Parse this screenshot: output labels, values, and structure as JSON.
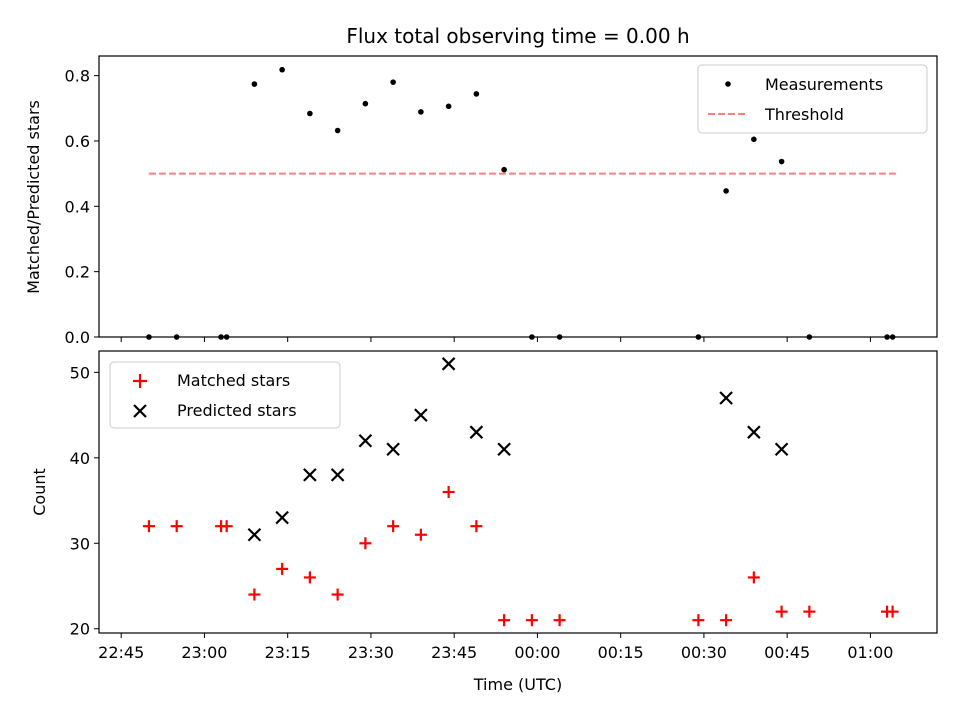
{
  "chart_data": [
    {
      "type": "scatter",
      "title": "Flux total observing time = 0.00 h",
      "xlabel": "",
      "ylabel": "Matched/Predicted stars",
      "ylim": [
        0,
        0.86
      ],
      "yticks": [
        "0.0",
        "0.2",
        "0.4",
        "0.6",
        "0.8"
      ],
      "ytick_values": [
        0,
        0.2,
        0.4,
        0.6,
        0.8
      ],
      "legend_position": "top-right",
      "threshold": {
        "name": "Threshold",
        "value": 0.5,
        "x_range": [
          "22:50",
          "01:05"
        ],
        "color": "#ff7f7f"
      },
      "series": [
        {
          "name": "Measurements",
          "marker": "dot",
          "color": "#000000",
          "x": [
            "22:50",
            "22:55",
            "23:03",
            "23:04",
            "23:09",
            "23:14",
            "23:19",
            "23:24",
            "23:29",
            "23:34",
            "23:39",
            "23:44",
            "23:49",
            "23:54",
            "23:59",
            "00:04",
            "00:29",
            "00:34",
            "00:39",
            "00:44",
            "00:49",
            "01:03",
            "01:04"
          ],
          "y": [
            0.0,
            0.0,
            0.0,
            0.0,
            0.774,
            0.818,
            0.684,
            0.632,
            0.714,
            0.78,
            0.689,
            0.706,
            0.744,
            0.512,
            0.0,
            0.0,
            0.0,
            0.447,
            0.605,
            0.537,
            0.0,
            0.0,
            0.0
          ]
        }
      ]
    },
    {
      "type": "scatter",
      "title": "",
      "xlabel": "Time (UTC)",
      "ylabel": "Count",
      "ylim": [
        19.5,
        52.5
      ],
      "yticks": [
        "20",
        "30",
        "40",
        "50"
      ],
      "ytick_values": [
        20,
        30,
        40,
        50
      ],
      "legend_position": "top-left",
      "series": [
        {
          "name": "Matched stars",
          "marker": "plus",
          "color": "#ff0000",
          "x": [
            "22:50",
            "22:55",
            "23:03",
            "23:04",
            "23:09",
            "23:14",
            "23:19",
            "23:24",
            "23:29",
            "23:34",
            "23:39",
            "23:44",
            "23:49",
            "23:54",
            "23:59",
            "00:04",
            "00:29",
            "00:34",
            "00:39",
            "00:44",
            "00:49",
            "01:03",
            "01:04"
          ],
          "y": [
            32,
            32,
            32,
            32,
            24,
            27,
            26,
            24,
            30,
            32,
            31,
            36,
            32,
            21,
            21,
            21,
            21,
            21,
            26,
            22,
            22,
            22,
            22
          ]
        },
        {
          "name": "Predicted stars",
          "marker": "x",
          "color": "#000000",
          "x": [
            "23:09",
            "23:14",
            "23:19",
            "23:24",
            "23:29",
            "23:34",
            "23:39",
            "23:44",
            "23:49",
            "23:54",
            "00:34",
            "00:39",
            "00:44"
          ],
          "y": [
            31,
            33,
            38,
            38,
            42,
            41,
            45,
            51,
            43,
            41,
            47,
            43,
            41
          ]
        }
      ]
    }
  ],
  "x_axis": {
    "ticks": [
      "22:45",
      "23:00",
      "23:15",
      "23:30",
      "23:45",
      "00:00",
      "00:15",
      "00:30",
      "00:45",
      "01:00"
    ],
    "range": [
      "22:41",
      "01:12"
    ]
  }
}
